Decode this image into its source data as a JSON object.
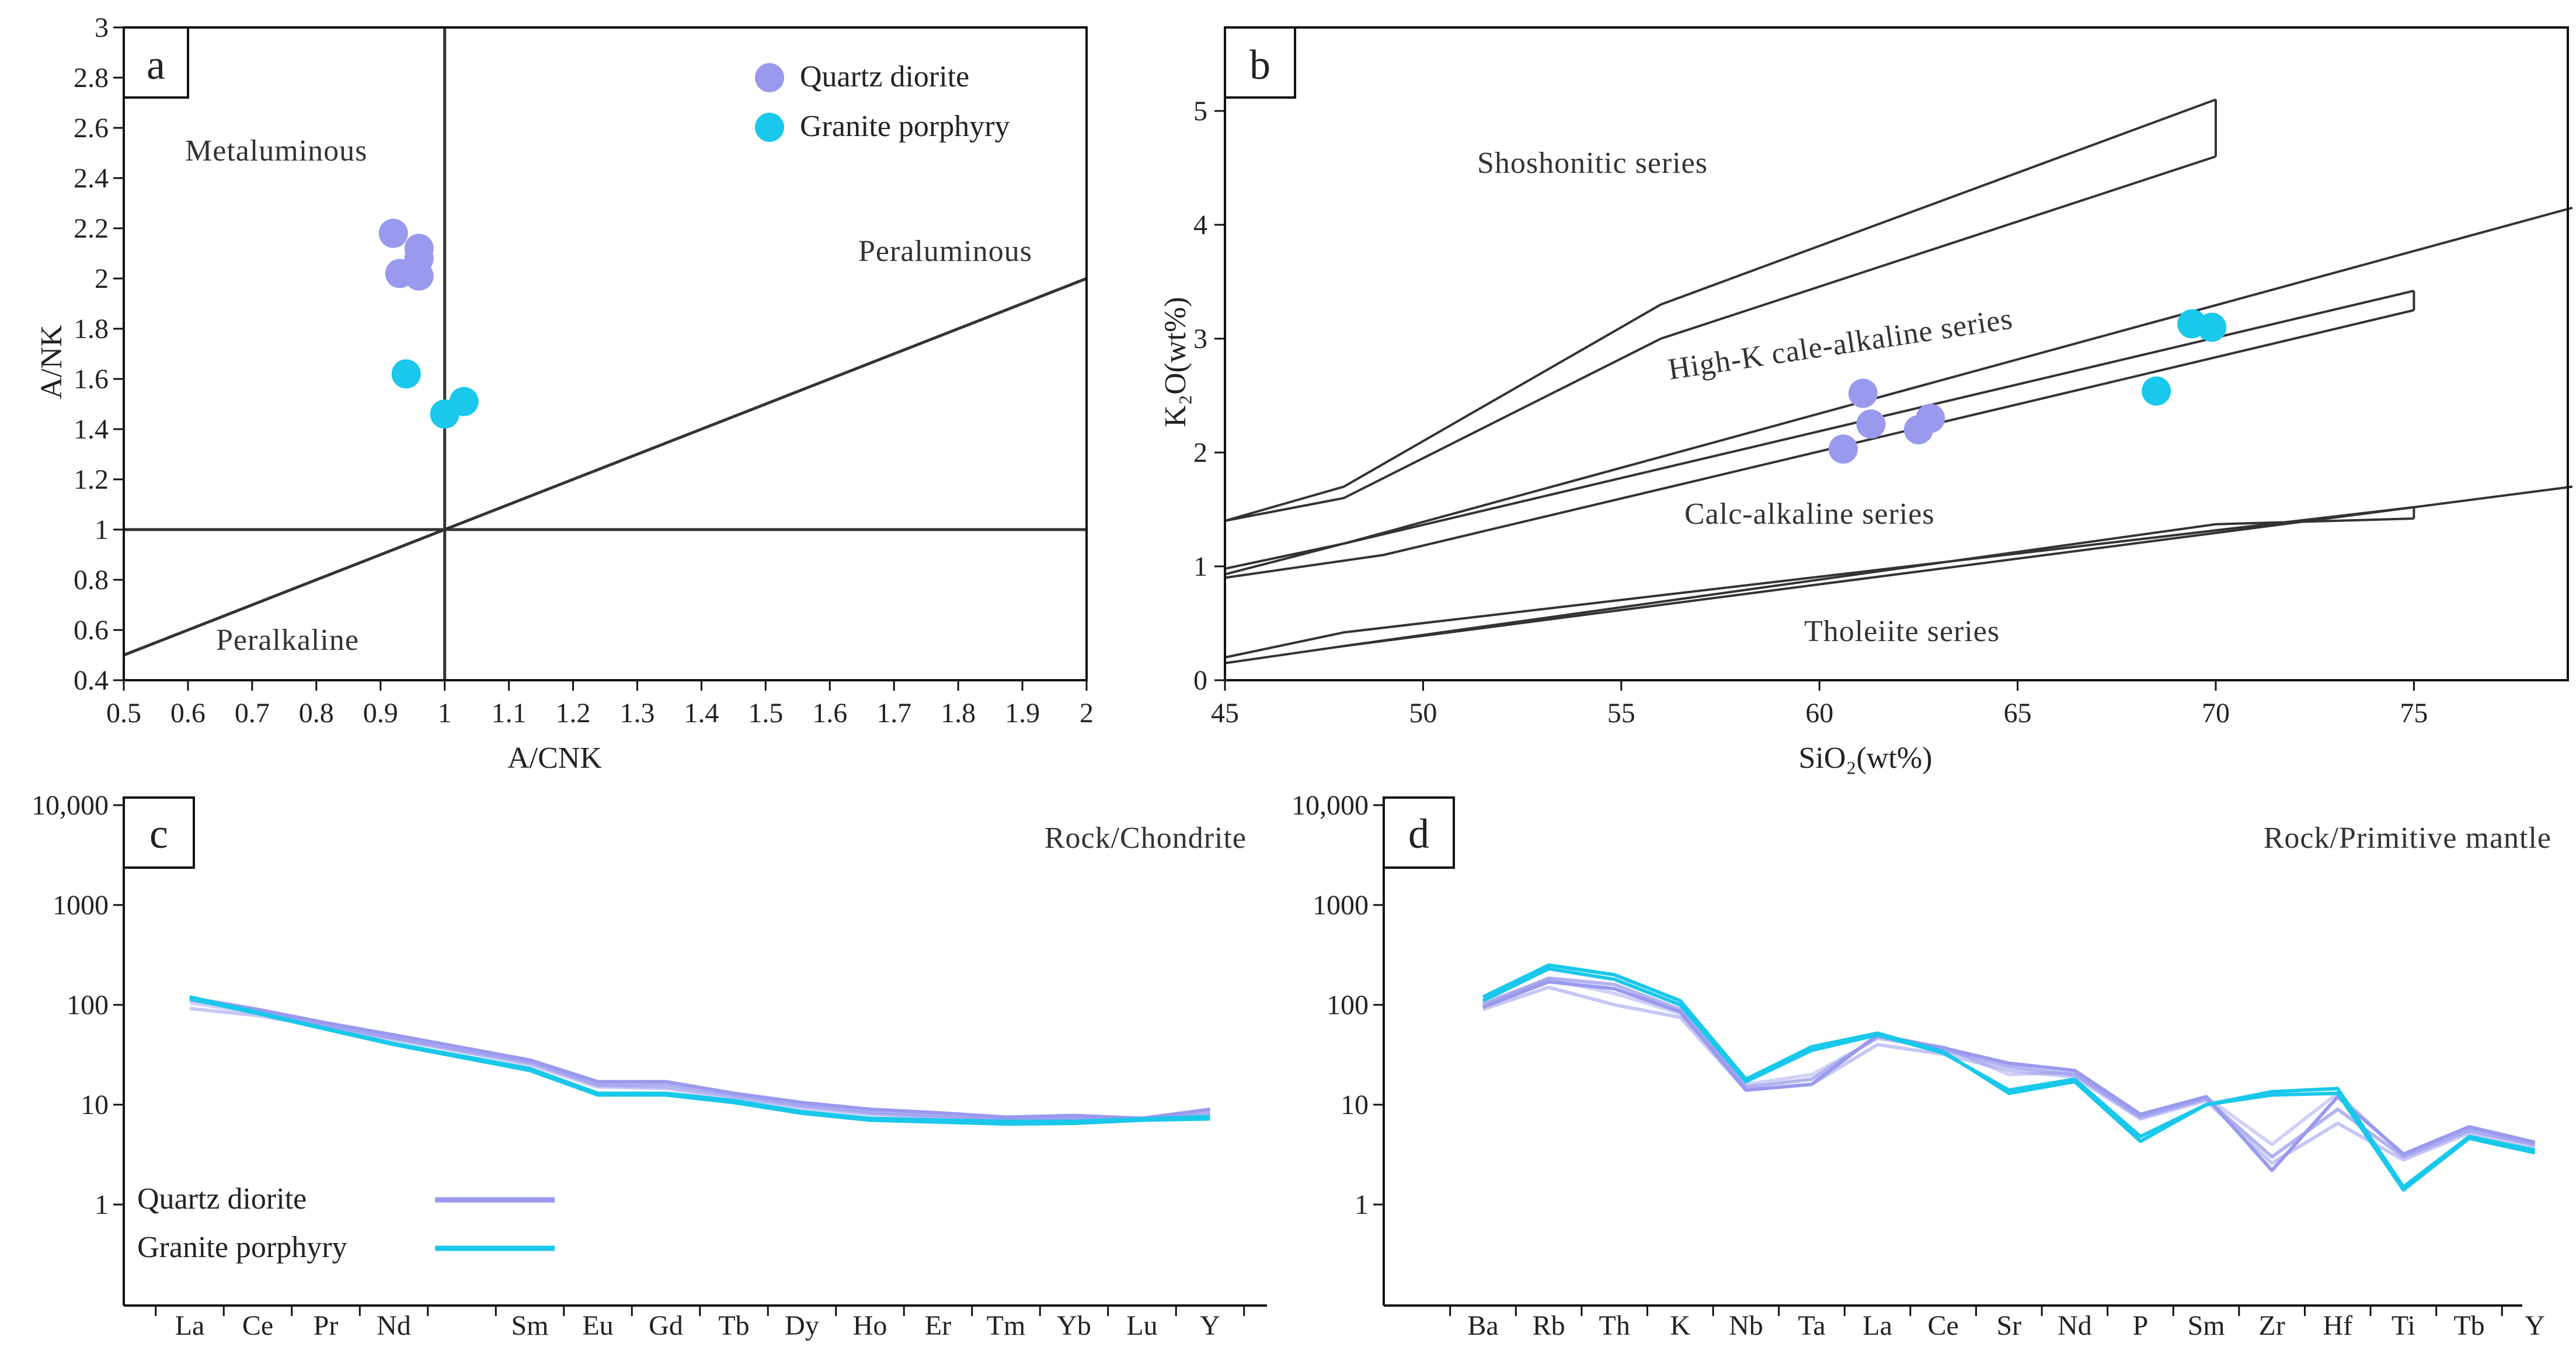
{
  "colors": {
    "quartz_diorite": "#9999ee",
    "granite_porphyry": "#19c8ea",
    "axis": "#111111"
  },
  "panels": {
    "a": {
      "letter": "a",
      "xlabel": "A/CNK",
      "ylabel": "A/NK",
      "xlim": [
        0.5,
        2
      ],
      "ylim": [
        0.4,
        3
      ],
      "xticks": [
        "0.5",
        "0.6",
        "0.7",
        "0.8",
        "0.9",
        "1",
        "1.1",
        "1.2",
        "1.3",
        "1.4",
        "1.5",
        "1.6",
        "1.7",
        "1.8",
        "1.9",
        "2"
      ],
      "yticks": [
        "0.4",
        "0.6",
        "0.8",
        "1",
        "1.2",
        "1.4",
        "1.6",
        "1.8",
        "2",
        "2.2",
        "2.4",
        "2.6",
        "2.8",
        "3"
      ],
      "regions": {
        "metaluminous": "Metaluminous",
        "peraluminous": "Peraluminous",
        "peralkaline": "Peralkaline"
      },
      "legend": [
        "Quartz diorite",
        "Granite porphyry"
      ]
    },
    "b": {
      "letter": "b",
      "xlabel": "SiO₂(wt%)",
      "ylabel": "K₂O(wt%)",
      "xlim": [
        45,
        79
      ],
      "ylim": [
        0,
        5.5
      ],
      "xticks": [
        "45",
        "50",
        "55",
        "60",
        "65",
        "70",
        "75"
      ],
      "yticks": [
        "0",
        "1",
        "2",
        "3",
        "4",
        "5"
      ],
      "regions": {
        "shoshonitic": "Shoshonitic series",
        "highk": "High-K cale-alkaline series",
        "calc": "Calc-alkaline series",
        "tholeiite": "Tholeiite series"
      }
    },
    "c": {
      "letter": "c",
      "corner_label": "Rock/Chondrite",
      "yticks": [
        "1",
        "10",
        "100",
        "1000",
        "10,000"
      ],
      "legend": [
        "Quartz diorite",
        "Granite porphyry"
      ]
    },
    "d": {
      "letter": "d",
      "corner_label": "Rock/Primitive mantle",
      "yticks": [
        "1",
        "10",
        "100",
        "1000",
        "10,000"
      ]
    }
  },
  "chart_data": [
    {
      "type": "scatter",
      "panel": "a",
      "title": "",
      "xlabel": "A/CNK",
      "ylabel": "A/NK",
      "xlim": [
        0.5,
        2
      ],
      "ylim": [
        0.4,
        3
      ],
      "series": [
        {
          "name": "Quartz diorite",
          "x": [
            0.92,
            0.96,
            0.96,
            0.93,
            0.96
          ],
          "y": [
            2.18,
            2.12,
            2.08,
            2.02,
            2.01
          ]
        },
        {
          "name": "Granite porphyry",
          "x": [
            0.94,
            1.0,
            1.03
          ],
          "y": [
            1.62,
            1.46,
            1.51
          ]
        }
      ],
      "lines": [
        {
          "name": "A/CNK=1",
          "x": [
            1,
            1
          ],
          "y": [
            0.4,
            3
          ]
        },
        {
          "name": "A/NK=1",
          "x": [
            0.5,
            2
          ],
          "y": [
            1,
            1
          ]
        },
        {
          "name": "diagonal",
          "x": [
            0.5,
            2
          ],
          "y": [
            0.5,
            2
          ]
        }
      ]
    },
    {
      "type": "scatter",
      "panel": "b",
      "title": "",
      "xlabel": "SiO2(wt%)",
      "ylabel": "K2O(wt%)",
      "xlim": [
        45,
        79
      ],
      "ylim": [
        0,
        5.5
      ],
      "series": [
        {
          "name": "Quartz diorite",
          "x": [
            61.1,
            61.3,
            60.6,
            62.5,
            62.8
          ],
          "y": [
            2.52,
            2.25,
            2.03,
            2.2,
            2.3
          ]
        },
        {
          "name": "Granite porphyry",
          "x": [
            69.4,
            69.9,
            68.5
          ],
          "y": [
            3.13,
            3.1,
            2.54
          ]
        }
      ],
      "boundaries": [
        {
          "name": "upper-1",
          "x": [
            45,
            48,
            56,
            70
          ],
          "y": [
            1.4,
            1.7,
            3.3,
            5.1
          ]
        },
        {
          "name": "upper-2",
          "x": [
            45,
            48,
            56,
            70
          ],
          "y": [
            1.4,
            1.6,
            3.0,
            4.6
          ]
        },
        {
          "name": "mid-1",
          "x": [
            45,
            48,
            79
          ],
          "y": [
            0.93,
            1.2,
            4.15
          ]
        },
        {
          "name": "mid-2",
          "x": [
            45,
            48,
            75
          ],
          "y": [
            0.98,
            1.2,
            3.42
          ]
        },
        {
          "name": "mid-3",
          "x": [
            45,
            49,
            75
          ],
          "y": [
            0.9,
            1.1,
            3.25
          ]
        },
        {
          "name": "low-1",
          "x": [
            45,
            48,
            79
          ],
          "y": [
            0.15,
            0.3,
            1.7
          ]
        },
        {
          "name": "low-2",
          "x": [
            45,
            48,
            75
          ],
          "y": [
            0.2,
            0.42,
            1.52
          ]
        },
        {
          "name": "low-3",
          "x": [
            48,
            70,
            75
          ],
          "y": [
            0.3,
            1.37,
            1.42
          ]
        }
      ]
    },
    {
      "type": "line",
      "panel": "c",
      "yscale": "log",
      "ylim": [
        0.1,
        10000
      ],
      "ylabel": "Rock/Chondrite",
      "categories": [
        "La",
        "Ce",
        "Pr",
        "Nd",
        "",
        "Sm",
        "Eu",
        "Gd",
        "Tb",
        "Dy",
        "Ho",
        "Er",
        "Tm",
        "Yb",
        "Lu",
        "Y"
      ],
      "series": [
        {
          "name": "Quartz diorite",
          "group": "Quartz diorite",
          "values": [
            118,
            90,
            66,
            50,
            null,
            28,
            17,
            17,
            13,
            10.5,
            9,
            8.3,
            7.5,
            7.8,
            7.3,
            9
          ]
        },
        {
          "name": "Quartz diorite",
          "group": "Quartz diorite",
          "values": [
            112,
            86,
            63,
            47,
            null,
            27,
            16,
            16,
            12.5,
            10,
            8.5,
            7.8,
            7.2,
            7.4,
            7.2,
            8.5
          ]
        },
        {
          "name": "Quartz diorite",
          "group": "Quartz diorite",
          "values": [
            92,
            78,
            60,
            45,
            null,
            26,
            15.5,
            15,
            12,
            9.6,
            8.2,
            7.5,
            7,
            7.2,
            7.1,
            8
          ]
        },
        {
          "name": "Quartz diorite",
          "group": "Quartz diorite",
          "values": [
            105,
            82,
            61,
            46,
            null,
            25,
            15,
            14.5,
            11.5,
            9.2,
            8,
            7.4,
            7,
            7.1,
            7,
            7.8
          ]
        },
        {
          "name": "Granite porphyry",
          "group": "Granite porphyry",
          "values": [
            115,
            82,
            57,
            40,
            null,
            22,
            12.5,
            12.5,
            10.5,
            8.2,
            7,
            6.7,
            6.4,
            6.5,
            7,
            7.2
          ]
        },
        {
          "name": "Granite porphyry",
          "group": "Granite porphyry",
          "values": [
            120,
            84,
            58,
            41,
            null,
            23,
            13,
            13,
            11,
            8.5,
            7.3,
            7,
            6.8,
            6.8,
            7.2,
            7.6
          ]
        }
      ]
    },
    {
      "type": "line",
      "panel": "d",
      "yscale": "log",
      "ylim": [
        0.1,
        10000
      ],
      "ylabel": "Rock/Primitive mantle",
      "categories": [
        "Ba",
        "Rb",
        "Th",
        "K",
        "Nb",
        "Ta",
        "La",
        "Ce",
        "Sr",
        "Nd",
        "P",
        "Sm",
        "Zr",
        "Hf",
        "Ti",
        "Tb",
        "Y"
      ],
      "series": [
        {
          "name": "Quartz diorite",
          "group": "Quartz diorite",
          "values": [
            95,
            170,
            145,
            85,
            14,
            16,
            50,
            37,
            26,
            22,
            8,
            12,
            2.2,
            12,
            3.2,
            6,
            4.2
          ]
        },
        {
          "name": "Quartz diorite",
          "group": "Quartz diorite",
          "values": [
            100,
            185,
            160,
            90,
            15,
            18,
            48,
            35,
            24,
            20,
            7.5,
            11.5,
            3,
            9,
            3,
            5.5,
            4
          ]
        },
        {
          "name": "Quartz diorite",
          "group": "Quartz diorite",
          "values": [
            90,
            150,
            100,
            75,
            14,
            16,
            40,
            32,
            22,
            19,
            7.2,
            11,
            2.6,
            6.5,
            2.8,
            5.2,
            3.8
          ]
        },
        {
          "name": "Quartz diorite",
          "group": "Quartz diorite",
          "values": [
            105,
            180,
            130,
            82,
            16,
            20,
            46,
            38,
            20,
            21,
            7.8,
            12,
            4,
            13,
            3.1,
            5.8,
            4.1
          ]
        },
        {
          "name": "Granite porphyry",
          "group": "Granite porphyry",
          "values": [
            120,
            250,
            200,
            110,
            18,
            38,
            52,
            34,
            13,
            17,
            4.3,
            10,
            12.5,
            13,
            1.4,
            4.6,
            3.3
          ]
        },
        {
          "name": "Granite porphyry",
          "group": "Granite porphyry",
          "values": [
            110,
            230,
            180,
            100,
            17,
            35,
            50,
            33,
            14,
            18,
            4.8,
            10,
            13.5,
            14.5,
            1.5,
            4.8,
            3.5
          ]
        }
      ]
    }
  ]
}
